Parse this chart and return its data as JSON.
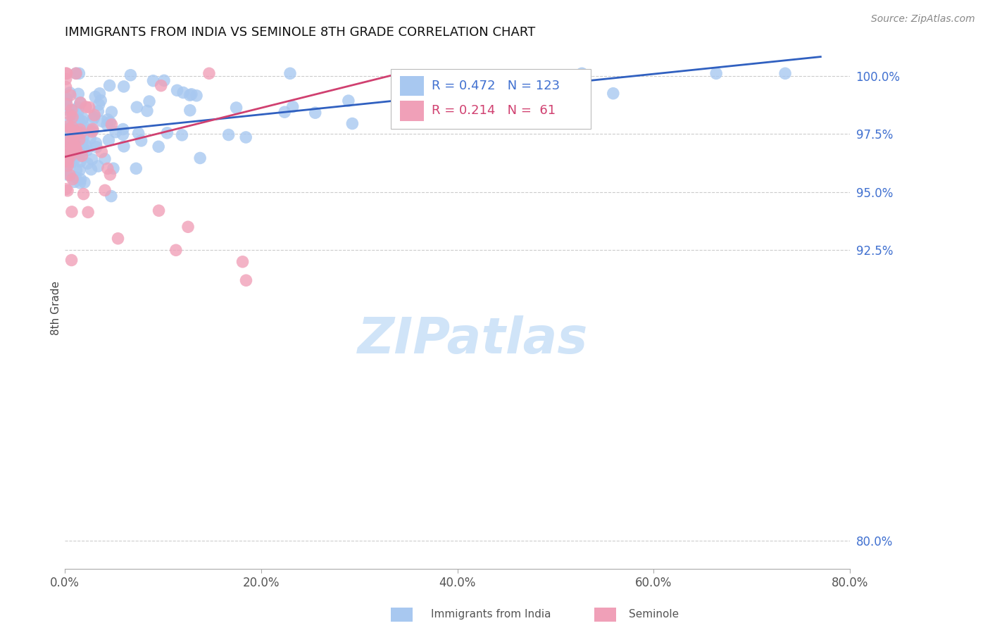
{
  "title": "IMMIGRANTS FROM INDIA VS SEMINOLE 8TH GRADE CORRELATION CHART",
  "source": "Source: ZipAtlas.com",
  "ylabel": "8th Grade",
  "ytick_labels": [
    "100.0%",
    "97.5%",
    "95.0%",
    "92.5%",
    "80.0%"
  ],
  "ytick_values": [
    1.0,
    0.975,
    0.95,
    0.925,
    0.8
  ],
  "xlim": [
    0.0,
    0.8
  ],
  "ylim": [
    0.788,
    1.012
  ],
  "legend1_label": "Immigrants from India",
  "legend2_label": "Seminole",
  "R1": 0.472,
  "N1": 123,
  "R2": 0.214,
  "N2": 61,
  "color_blue": "#a8c8f0",
  "color_pink": "#f0a0b8",
  "color_blue_line": "#3060c0",
  "color_pink_line": "#d04070",
  "color_blue_text": "#4070d0",
  "color_pink_text": "#d04070",
  "watermark": "ZIPatlas",
  "watermark_color": "#d0e4f8",
  "title_fontsize": 13,
  "source_fontsize": 10,
  "tick_fontsize": 12,
  "legend_fontsize": 13
}
